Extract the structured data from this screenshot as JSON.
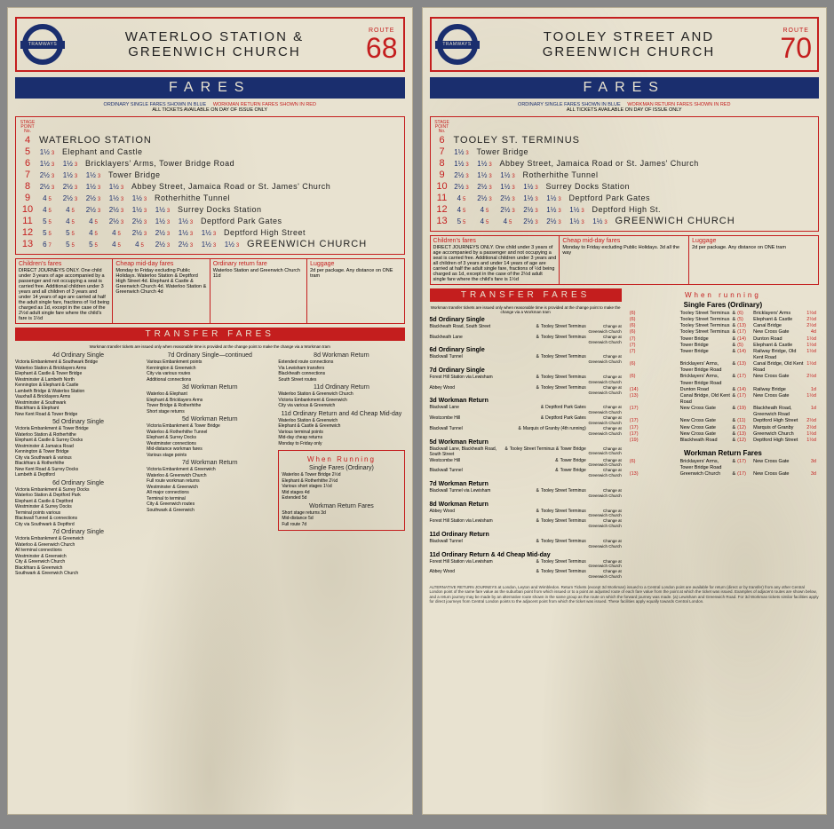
{
  "roundel_text": "TRAMWAYS",
  "fares_label": "FARES",
  "route_label": "ROUTE",
  "notice_blue": "ORDINARY SINGLE FARES SHOWN IN BLUE",
  "notice_red": "WORKMAN RETURN FARES SHOWN IN RED",
  "notice_line2": "ALL TICKETS AVAILABLE ON DAY OF ISSUE ONLY",
  "stage_label": "STAGE POINT No.",
  "transfer_label": "TRANSFER FARES",
  "transfer_sub": "Workman transfer tickets are issued only when reasonable time is provided at the change point to make the change via a Workman tram",
  "left": {
    "title_l1": "WATERLOO STATION &",
    "title_l2": "GREENWICH CHURCH",
    "route": "68",
    "stops": [
      {
        "no": "4",
        "name": "WATERLOO STATION",
        "term": true,
        "fares": []
      },
      {
        "no": "5",
        "name": "Elephant and Castle",
        "fares": [
          "1½ 3"
        ]
      },
      {
        "no": "6",
        "name": "Bricklayers' Arms, Tower Bridge Road",
        "fares": [
          "1½ 3",
          "1½ 3"
        ]
      },
      {
        "no": "7",
        "name": "Tower Bridge",
        "fares": [
          "2½ 3",
          "1½ 3",
          "1½ 3"
        ]
      },
      {
        "no": "8",
        "name": "Abbey Street, Jamaica Road or St. James' Church",
        "fares": [
          "2½ 3",
          "2½ 3",
          "1½ 3",
          "1½ 3"
        ]
      },
      {
        "no": "9",
        "name": "Rotherhithe Tunnel",
        "fares": [
          "4 5",
          "2½ 3",
          "2½ 3",
          "1½ 3",
          "1½ 3"
        ]
      },
      {
        "no": "10",
        "name": "Surrey Docks Station",
        "fares": [
          "4 5",
          "4 5",
          "2½ 3",
          "2½ 3",
          "1½ 3",
          "1½ 3"
        ]
      },
      {
        "no": "11",
        "name": "Deptford Park Gates",
        "fares": [
          "5 5",
          "4 5",
          "4 5",
          "2½ 3",
          "2½ 3",
          "1½ 3",
          "1½ 3"
        ]
      },
      {
        "no": "12",
        "name": "Deptford High Street",
        "fares": [
          "5 5",
          "5 5",
          "4 5",
          "4 5",
          "2½ 3",
          "2½ 3",
          "1½ 3",
          "1½ 3"
        ]
      },
      {
        "no": "13",
        "name": "GREENWICH CHURCH",
        "term": true,
        "fares": [
          "6 7",
          "5 5",
          "5 5",
          "4 5",
          "4 5",
          "2½ 3",
          "2½ 3",
          "1½ 3",
          "1½ 3"
        ]
      }
    ],
    "info": [
      {
        "h": "Children's fares",
        "t": "DIRECT JOURNEYS ONLY. One child under 3 years of age accompanied by a passenger and not occupying a seat is carried free. Additional children under 3 years and all children of 3 years and under 14 years of age are carried at half the adult single fare, fractions of ½d being charged as 1d, except in the case of the 2½d adult single fare where the child's fare is 1½d"
      },
      {
        "h": "Cheap mid-day fares",
        "t": "Monday to Friday excluding Public Holidays. Waterloo Station & Deptford High Street 4d. Elephant & Castle & Greenwich Church 4d. Waterloo Station & Greenwich Church 4d"
      },
      {
        "h": "Ordinary return fare",
        "t": "Waterloo Station and Greenwich Church 11d"
      },
      {
        "h": "Luggage",
        "t": "2d per package. Any distance on ONE tram"
      }
    ],
    "transfer_cols": [
      {
        "groups": [
          {
            "h": "4d Ordinary Single",
            "sub": "",
            "items": [
              "Victoria Embankment & Southwark Bridge",
              "Waterloo Station & Bricklayers Arms",
              "Elephant & Castle & Tower Bridge",
              "Westminster & Lambeth North",
              "Kennington & Elephant & Castle",
              "Lambeth Bridge & Waterloo Station",
              "Vauxhall & Bricklayers Arms",
              "Westminster & Southwark",
              "Blackfriars & Elephant",
              "New Kent Road & Tower Bridge"
            ]
          },
          {
            "h": "5d Ordinary Single",
            "items": [
              "Victoria Embankment & Tower Bridge",
              "Waterloo Station & Rotherhithe",
              "Elephant & Castle & Surrey Docks",
              "Westminster & Jamaica Road",
              "Kennington & Tower Bridge",
              "City via Southwark & various",
              "Blackfriars & Rotherhithe",
              "New Kent Road & Surrey Docks",
              "Lambeth & Deptford"
            ]
          },
          {
            "h": "6d Ordinary Single",
            "items": [
              "Victoria Embankment & Surrey Docks",
              "Waterloo Station & Deptford Park",
              "Elephant & Castle & Deptford",
              "Westminster & Surrey Docks",
              "Terminal points various",
              "Blackwall Tunnel & connections",
              "City via Southwark & Deptford"
            ]
          },
          {
            "h": "7d Ordinary Single",
            "items": [
              "Victoria Embankment & Greenwich",
              "Waterloo & Greenwich Church",
              "All terminal connections",
              "Westminster & Greenwich",
              "City & Greenwich Church",
              "Blackfriars & Greenwich",
              "Southwark & Greenwich Church"
            ]
          }
        ]
      },
      {
        "groups": [
          {
            "h": "7d Ordinary Single—continued",
            "items": [
              "Various Embankment points",
              "Kennington & Greenwich",
              "City via various routes",
              "Additional connections"
            ]
          },
          {
            "h": "3d Workman Return",
            "items": [
              "Waterloo & Elephant",
              "Elephant & Bricklayers Arms",
              "Tower Bridge & Rotherhithe",
              "Short stage returns"
            ]
          },
          {
            "h": "5d Workman Return",
            "items": [
              "Victoria Embankment & Tower Bridge",
              "Waterloo & Rotherhithe Tunnel",
              "Elephant & Surrey Docks",
              "Westminster connections",
              "Mid-distance workman fares",
              "Various stage points"
            ]
          },
          {
            "h": "7d Workman Return",
            "items": [
              "Victoria Embankment & Greenwich",
              "Waterloo & Greenwich Church",
              "Full route workman returns",
              "Westminster & Greenwich",
              "All major connections",
              "Terminal to terminal",
              "City & Greenwich routes",
              "Southwark & Greenwich"
            ]
          }
        ]
      },
      {
        "groups": [
          {
            "h": "8d Workman Return",
            "items": [
              "Extended route connections",
              "Via Lewisham transfers",
              "Blackheath connections",
              "South Street routes"
            ]
          },
          {
            "h": "11d Ordinary Return",
            "items": [
              "Waterloo Station & Greenwich Church",
              "Victoria Embankment & Greenwich",
              "City via various & Greenwich"
            ]
          },
          {
            "h": "11d Ordinary Return and 4d Cheap Mid-day",
            "items": [
              "Waterloo Station & Greenwich",
              "Elephant & Castle & Greenwich",
              "Various terminal points",
              "Mid-day cheap returns",
              "Monday to Friday only"
            ]
          }
        ]
      }
    ],
    "when_running": {
      "h": "When Running",
      "single_h": "Single Fares (Ordinary)",
      "singles": [
        "Waterloo & Tower Bridge 2½d",
        "Elephant & Rotherhithe 2½d",
        "Various short stages 1½d",
        "Mid stages 4d",
        "Extended 5d"
      ],
      "workman_h": "Workman Return Fares",
      "workmans": [
        "Short stage returns 3d",
        "Mid-distance 5d",
        "Full route 7d"
      ]
    }
  },
  "right": {
    "title_l1": "TOOLEY STREET AND",
    "title_l2": "GREENWICH CHURCH",
    "route": "70",
    "stops": [
      {
        "no": "6",
        "name": "TOOLEY ST. TERMINUS",
        "term": true,
        "fares": []
      },
      {
        "no": "7",
        "name": "Tower Bridge",
        "fares": [
          "1½ 3"
        ]
      },
      {
        "no": "8",
        "name": "Abbey Street, Jamaica Road or St. James' Church",
        "fares": [
          "1½ 3",
          "1½ 3"
        ]
      },
      {
        "no": "9",
        "name": "Rotherhithe Tunnel",
        "fares": [
          "2½ 3",
          "1½ 3",
          "1½ 3"
        ]
      },
      {
        "no": "10",
        "name": "Surrey Docks Station",
        "fares": [
          "2½ 3",
          "2½ 3",
          "1½ 3",
          "1½ 3"
        ]
      },
      {
        "no": "11",
        "name": "Deptford Park Gates",
        "fares": [
          "4 5",
          "2½ 3",
          "2½ 3",
          "1½ 3",
          "1½ 3"
        ]
      },
      {
        "no": "12",
        "name": "Deptford High St.",
        "fares": [
          "4 5",
          "4 5",
          "2½ 3",
          "2½ 3",
          "1½ 3",
          "1½ 3"
        ]
      },
      {
        "no": "13",
        "name": "GREENWICH CHURCH",
        "term": true,
        "fares": [
          "5 5",
          "4 5",
          "4 5",
          "2½ 3",
          "2½ 3",
          "1½ 3",
          "1½ 3"
        ]
      }
    ],
    "info": [
      {
        "h": "Children's fares",
        "t": "DIRECT JOURNEYS ONLY. One child under 3 years of age accompanied by a passenger and not occupying a seat is carried free. Additional children under 3 years and all children of 3 years and under 14 years of age are carried at half the adult single fare, fractions of ½d being charged as 1d, except in the case of the 2½d adult single fare where the child's fare is 1½d"
      },
      {
        "h": "Cheap mid-day fares",
        "t": "Monday to Friday excluding Public Holidays. 3d all the way"
      },
      {
        "h": "Luggage",
        "t": "2d per package. Any distance on ONE tram"
      }
    ],
    "transfer": {
      "left_groups": [
        {
          "h": "5d Ordinary Single",
          "items": [
            [
              "Blackheath Road, South Street",
              "Tooley Street Terminus",
              "Greenwich Church"
            ],
            [
              "Blackheath Lane",
              "Tooley Street Terminus",
              "Greenwich Church"
            ]
          ]
        },
        {
          "h": "6d Ordinary Single",
          "items": [
            [
              "Blackwall Tunnel",
              "Tooley Street Terminus",
              "Greenwich Church"
            ]
          ]
        },
        {
          "h": "7d Ordinary Single",
          "items": [
            [
              "Forest Hill Station via Lewisham",
              "Tooley Street Terminus",
              "Greenwich Church"
            ],
            [
              "Abbey Wood",
              "Tooley Street Terminus",
              "Greenwich Church"
            ]
          ]
        },
        {
          "h": "3d Workman Return",
          "items": [
            [
              "Blackwall Lane",
              "Deptford Park Gates",
              "Greenwich Church"
            ],
            [
              "Westcombe Hill",
              "Deptford Park Gates",
              "Greenwich Church"
            ],
            [
              "Blackwall Tunnel",
              "Marquis of Granby (4th running)",
              "Greenwich Church"
            ]
          ]
        },
        {
          "h": "5d Workman Return",
          "items": [
            [
              "Blackwall Lane, Blackheath Road, South Street",
              "Tooley Street Terminus & Tower Bridge",
              "Greenwich Church"
            ],
            [
              "Westcombe Hill",
              "Tower Bridge",
              "Greenwich Church"
            ],
            [
              "Blackwall Tunnel",
              "Tower Bridge",
              "Greenwich Church"
            ]
          ]
        },
        {
          "h": "7d Workman Return",
          "items": [
            [
              "Blackwall Tunnel via Lewisham",
              "Tooley Street Terminus",
              "Greenwich Church"
            ]
          ]
        },
        {
          "h": "8d Workman Return",
          "items": [
            [
              "Abbey Wood",
              "Tooley Street Terminus",
              "Greenwich Church"
            ],
            [
              "Forest Hill Station via Lewisham",
              "Tooley Street Terminus",
              "Greenwich Church"
            ]
          ]
        },
        {
          "h": "11d Ordinary Return",
          "items": [
            [
              "Blackwall Tunnel",
              "Tooley Street Terminus",
              "Greenwich Church"
            ]
          ]
        },
        {
          "h": "11d Ordinary Return & 4d Cheap Mid-day",
          "items": [
            [
              "Forest Hill Station via Lewisham",
              "Tooley Street Terminus",
              "Greenwich Church"
            ],
            [
              "Abbey Wood",
              "Tooley Street Terminus",
              "Greenwich Church"
            ]
          ]
        }
      ]
    },
    "when_running": {
      "h": "When running",
      "single_h": "Single Fares (Ordinary)",
      "singles": [
        [
          "(6)",
          "Tooley Street Terminus",
          "&",
          "(6)",
          "Bricklayers' Arms",
          "1½d"
        ],
        [
          "(6)",
          "Tooley Street Terminus",
          "&",
          "(5)",
          "Elephant & Castle",
          "2½d"
        ],
        [
          "(6)",
          "Tooley Street Terminus",
          "&",
          "(13)",
          "Canal Bridge",
          "2½d"
        ],
        [
          "(6)",
          "Tooley Street Terminus",
          "&",
          "(17)",
          "New Cross Gate",
          "4d"
        ],
        [
          "(7)",
          "Tower Bridge",
          "&",
          "(14)",
          "Dunton Road",
          "1½d"
        ],
        [
          "(7)",
          "Tower Bridge",
          "&",
          "(5)",
          "Elephant & Castle",
          "1½d"
        ],
        [
          "(7)",
          "Tower Bridge",
          "&",
          "(14)",
          "Railway Bridge, Old Kent Road",
          "1½d"
        ],
        [
          "(6)",
          "Bricklayers' Arms, Tower Bridge Road",
          "&",
          "(13)",
          "Canal Bridge, Old Kent Road",
          "1½d"
        ],
        [
          "(6)",
          "Bricklayers' Arms, Tower Bridge Road",
          "&",
          "(17)",
          "New Cross Gate",
          "2½d"
        ],
        [
          "(14)",
          "Dunton Road",
          "&",
          "(14)",
          "Railway Bridge",
          "1d"
        ],
        [
          "(13)",
          "Canal Bridge, Old Kent Road",
          "&",
          "(17)",
          "New Cross Gate",
          "1½d"
        ],
        [
          "(17)",
          "New Cross Gate",
          "&",
          "(19)",
          "Blackheath Road, Greenwich Road",
          "1d"
        ],
        [
          "(17)",
          "New Cross Gate",
          "&",
          "(11)",
          "Deptford High Street",
          "2½d"
        ],
        [
          "(17)",
          "New Cross Gate",
          "&",
          "(12)",
          "Marquis of Granby",
          "2½d"
        ],
        [
          "(17)",
          "New Cross Gate",
          "&",
          "(13)",
          "Greenwich Church",
          "1½d"
        ],
        [
          "(19)",
          "Blackheath Road",
          "&",
          "(12)",
          "Deptford High Street",
          "1½d"
        ]
      ],
      "workman_h": "Workman Return Fares",
      "workmans": [
        [
          "(6)",
          "Bricklayers' Arms, Tower Bridge Road",
          "&",
          "(17)",
          "New Cross Gate",
          "3d"
        ],
        [
          "(13)",
          "Greenwich Church",
          "&",
          "(17)",
          "New Cross Gate",
          "3d"
        ]
      ]
    },
    "footnote": "ALTERNATIVE RETURN JOURNEYS at London, Leyton and Wimbledon. Return Tickets (except 3d Workman) issued to a Central London point are available for return (direct or by transfer) from any other Central London point of the same fare value as the suburban point from which issued or to a point an adjusted route of each fare value from the point at which the ticket was issued. Examples of adjacent routes are shown below, and a return journey may be made by an alternative route shown in the same group as the route on which the forward journey was made. (a) Lewisham and Greenwich Road. For 3d Workman tickets similar facilities apply for direct journeys from Central London points to the adjacent point from which the ticket was issued. These facilities apply equally towards Central London."
  }
}
